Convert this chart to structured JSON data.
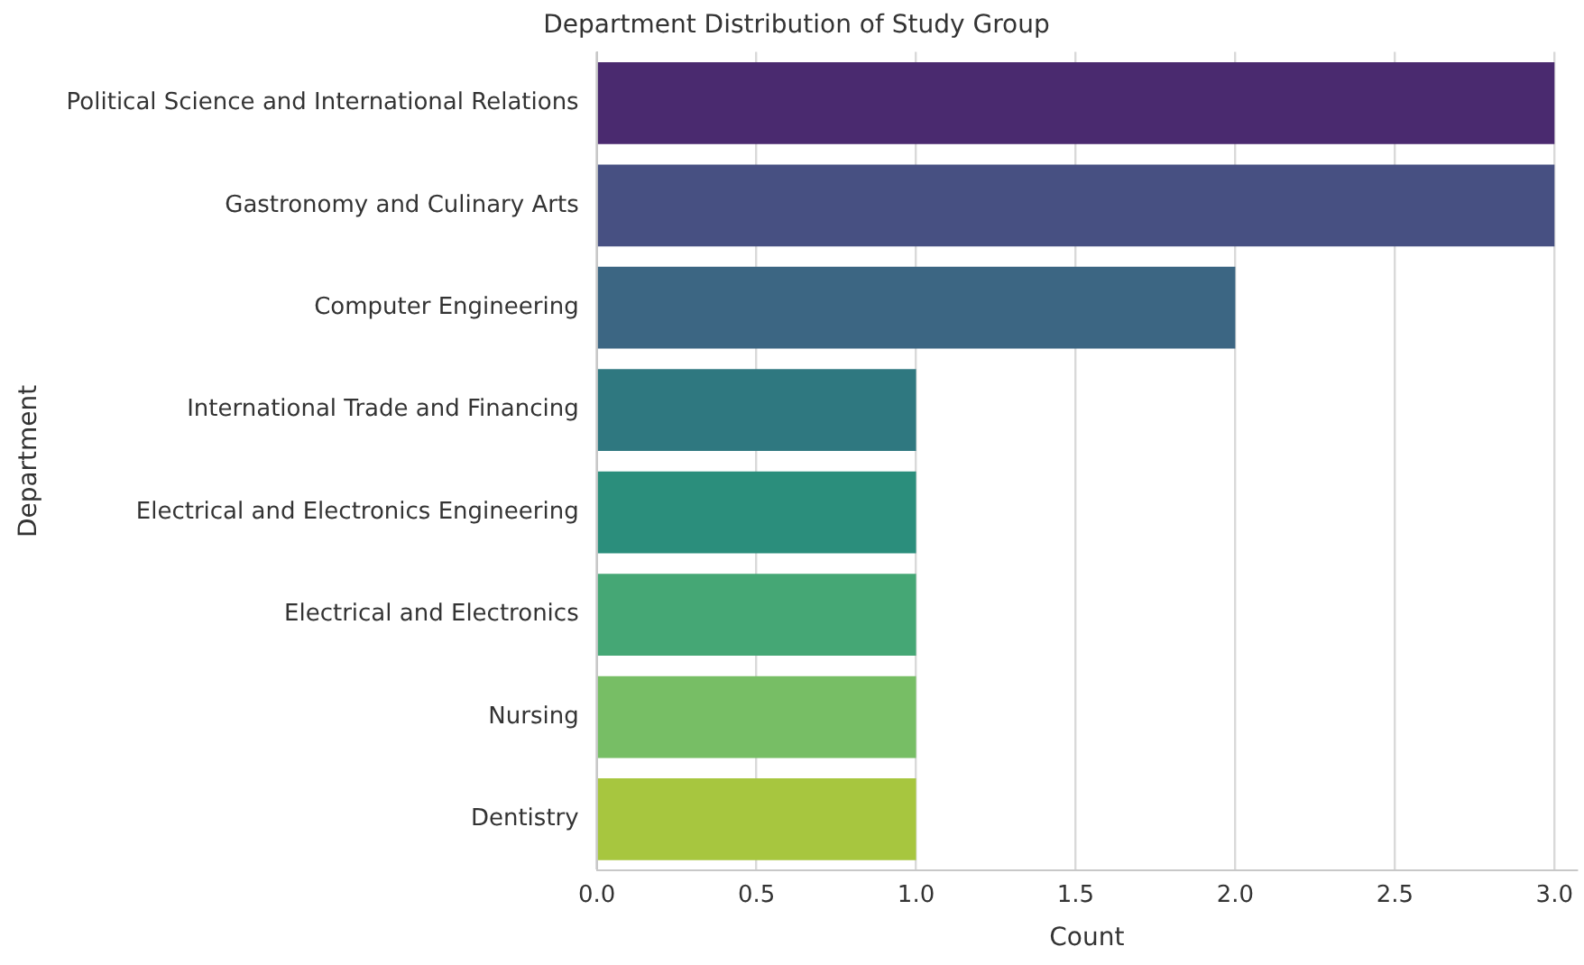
{
  "chart_data": {
    "type": "bar",
    "orientation": "horizontal",
    "title": "Department Distribution of Study Group",
    "xlabel": "Count",
    "ylabel": "Department",
    "categories": [
      "Political Science and International Relations",
      "Gastronomy and Culinary Arts",
      "Computer Engineering",
      "International Trade and Financing",
      "Electrical and Electronics Engineering",
      "Electrical and Electronics",
      "Nursing",
      "Dentistry"
    ],
    "values": [
      3,
      3,
      2,
      1,
      1,
      1,
      1,
      1
    ],
    "colors": [
      "#4a2a6f",
      "#475082",
      "#3c6683",
      "#2f7880",
      "#2b8e7c",
      "#45a775",
      "#77be65",
      "#a7c63f"
    ],
    "xlim": [
      0,
      3.07
    ],
    "xticks": [
      {
        "value": 0,
        "label": "0.0"
      },
      {
        "value": 0.5,
        "label": "0.5"
      },
      {
        "value": 1,
        "label": "1.0"
      },
      {
        "value": 1.5,
        "label": "1.5"
      },
      {
        "value": 2,
        "label": "2.0"
      },
      {
        "value": 2.5,
        "label": "2.5"
      },
      {
        "value": 3,
        "label": "3.0"
      }
    ],
    "grid": "x",
    "legend": false
  }
}
